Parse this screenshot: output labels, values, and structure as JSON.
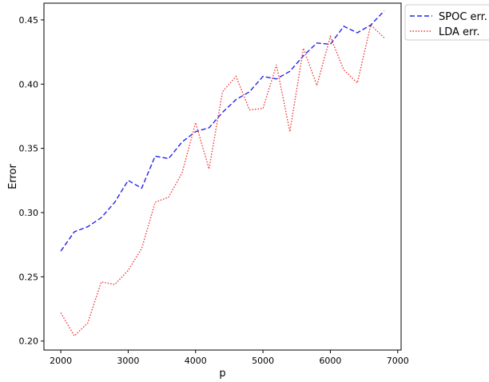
{
  "chart_data": {
    "type": "line",
    "xlabel": "p",
    "ylabel": "Error",
    "xlim": [
      1750,
      7050
    ],
    "ylim": [
      0.193,
      0.463
    ],
    "xticks": [
      2000,
      3000,
      4000,
      5000,
      6000,
      7000
    ],
    "yticks": [
      0.2,
      0.25,
      0.3,
      0.35,
      0.4,
      0.45
    ],
    "xtick_labels": [
      "2000",
      "3000",
      "4000",
      "5000",
      "6000",
      "7000"
    ],
    "ytick_labels": [
      "0.20",
      "0.25",
      "0.30",
      "0.35",
      "0.40",
      "0.45"
    ],
    "grid": false,
    "legend_position": "outside-top-right",
    "x": [
      2000,
      2200,
      2400,
      2600,
      2800,
      3000,
      3200,
      3400,
      3600,
      3800,
      4000,
      4200,
      4400,
      4600,
      4800,
      5000,
      5200,
      5400,
      5600,
      5800,
      6000,
      6200,
      6400,
      6600,
      6800
    ],
    "series": [
      {
        "name": "SPOC err.",
        "color": "#2323ee",
        "dash": "dashed",
        "values": [
          0.27,
          0.285,
          0.289,
          0.296,
          0.308,
          0.325,
          0.319,
          0.344,
          0.342,
          0.355,
          0.363,
          0.366,
          0.378,
          0.388,
          0.394,
          0.406,
          0.404,
          0.41,
          0.422,
          0.432,
          0.431,
          0.445,
          0.44,
          0.446,
          0.457
        ]
      },
      {
        "name": "LDA err.",
        "color": "#ee3a3a",
        "dash": "dotted",
        "values": [
          0.222,
          0.204,
          0.214,
          0.246,
          0.244,
          0.255,
          0.272,
          0.308,
          0.312,
          0.331,
          0.37,
          0.334,
          0.394,
          0.406,
          0.38,
          0.381,
          0.415,
          0.363,
          0.428,
          0.399,
          0.437,
          0.411,
          0.401,
          0.446,
          0.436
        ]
      }
    ]
  }
}
